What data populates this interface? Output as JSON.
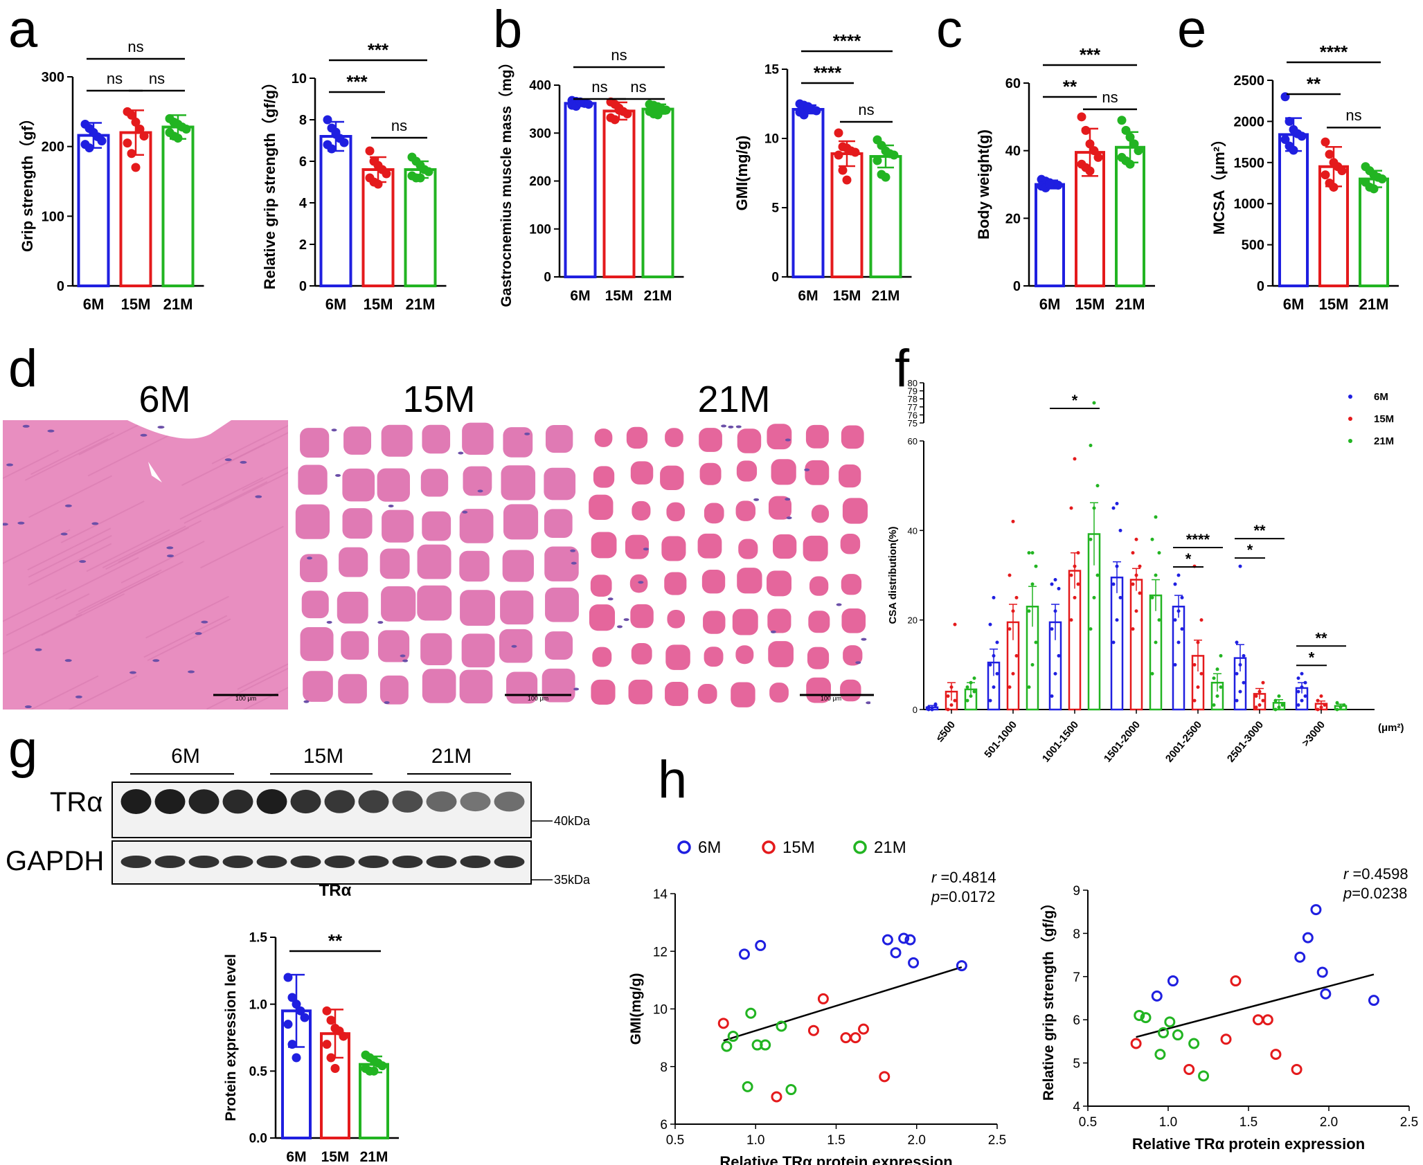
{
  "colors": {
    "6M": "#1f1fe0",
    "15M": "#e41a1c",
    "21M": "#22b422",
    "histo_bg": "#e88ec0",
    "histo_fiber": "#e5669c",
    "histo_gap": "#ffffff"
  },
  "groups": [
    "6M",
    "15M",
    "21M"
  ],
  "panels": {
    "a": "a",
    "b": "b",
    "c": "c",
    "d": "d",
    "e": "e",
    "f": "f",
    "g": "g",
    "h": "h"
  },
  "histology": {
    "labels": [
      "6M",
      "15M",
      "21M"
    ],
    "scalebar": "100 μm"
  },
  "blot": {
    "group_labels": [
      "6M",
      "15M",
      "21M"
    ],
    "rows": [
      "TRα",
      "GAPDH"
    ],
    "markers": [
      "40kDa",
      "35kDa"
    ],
    "bar_title": "TRα"
  },
  "chart_data": [
    {
      "id": "a1",
      "type": "bar",
      "categories": [
        "6M",
        "15M",
        "21M"
      ],
      "values": [
        216,
        220,
        228
      ],
      "sd": [
        18,
        32,
        17
      ],
      "points": [
        [
          232,
          226,
          220,
          214,
          208,
          203,
          198,
          220
        ],
        [
          250,
          245,
          235,
          225,
          215,
          205,
          190,
          170
        ],
        [
          240,
          235,
          232,
          228,
          225,
          220,
          215,
          212
        ]
      ],
      "ylabel": "Grip strength（gf）",
      "ylim": [
        0,
        300
      ],
      "yticks": [
        0,
        100,
        200,
        300
      ],
      "sig": [
        {
          "a": 0,
          "b": 2,
          "label": "ns"
        },
        {
          "a": 0,
          "b": 1,
          "label": "ns"
        },
        {
          "a": 1,
          "b": 2,
          "label": "ns"
        }
      ]
    },
    {
      "id": "a2",
      "type": "bar",
      "categories": [
        "6M",
        "15M",
        "21M"
      ],
      "values": [
        7.2,
        5.6,
        5.6
      ],
      "sd": [
        0.7,
        0.6,
        0.4
      ],
      "points": [
        [
          8.0,
          7.6,
          7.3,
          7.1,
          6.9,
          6.8,
          6.6,
          7.4
        ],
        [
          6.5,
          6.0,
          5.8,
          5.6,
          5.4,
          5.2,
          5.0,
          4.9
        ],
        [
          6.2,
          6.0,
          5.8,
          5.6,
          5.5,
          5.3,
          5.2,
          5.2
        ]
      ],
      "ylabel": "Relative grip strength（gf/g）",
      "ylim": [
        0,
        10
      ],
      "yticks": [
        0,
        2,
        4,
        6,
        8,
        10
      ],
      "sig": [
        {
          "a": 0,
          "b": 2,
          "label": "***"
        },
        {
          "a": 0,
          "b": 1,
          "label": "***"
        },
        {
          "a": 1,
          "b": 2,
          "label": "ns"
        }
      ]
    },
    {
      "id": "b1",
      "type": "bar",
      "categories": [
        "6M",
        "15M",
        "21M"
      ],
      "values": [
        362,
        346,
        350
      ],
      "sd": [
        6,
        18,
        10
      ],
      "points": [
        [
          368,
          366,
          364,
          362,
          360,
          358,
          356,
          365
        ],
        [
          365,
          360,
          352,
          345,
          340,
          332,
          328,
          348
        ],
        [
          360,
          358,
          355,
          350,
          348,
          345,
          340,
          338
        ]
      ],
      "ylabel": "Gastrocnemius muscle mass（mg）",
      "ylim": [
        0,
        400
      ],
      "yticks": [
        0,
        100,
        200,
        300,
        400
      ],
      "sig": [
        {
          "a": 0,
          "b": 2,
          "label": "ns"
        },
        {
          "a": 0,
          "b": 1,
          "label": "ns"
        },
        {
          "a": 1,
          "b": 2,
          "label": "ns"
        }
      ]
    },
    {
      "id": "b2",
      "type": "bar",
      "categories": [
        "6M",
        "15M",
        "21M"
      ],
      "values": [
        12.1,
        8.9,
        8.7
      ],
      "sd": [
        0.3,
        0.9,
        0.8
      ],
      "points": [
        [
          12.5,
          12.4,
          12.3,
          12.1,
          12.0,
          11.9,
          11.7,
          12.2
        ],
        [
          10.4,
          9.4,
          9.3,
          9.1,
          9.0,
          8.8,
          7.7,
          7.0
        ],
        [
          9.9,
          9.5,
          9.1,
          8.9,
          8.8,
          8.4,
          7.4,
          7.2
        ]
      ],
      "ylabel": "GMI(mg/g)",
      "ylim": [
        0,
        15
      ],
      "yticks": [
        0,
        5,
        10,
        15
      ],
      "sig": [
        {
          "a": 0,
          "b": 2,
          "label": "****"
        },
        {
          "a": 0,
          "b": 1,
          "label": "****"
        },
        {
          "a": 1,
          "b": 2,
          "label": "ns"
        }
      ]
    },
    {
      "id": "c",
      "type": "bar",
      "categories": [
        "6M",
        "15M",
        "21M"
      ],
      "values": [
        30,
        39.5,
        41
      ],
      "sd": [
        1.2,
        7,
        4.5
      ],
      "points": [
        [
          31.5,
          31,
          30.5,
          30,
          29.8,
          29.5,
          29,
          30.2
        ],
        [
          50,
          46,
          42,
          40,
          38,
          36,
          35,
          34
        ],
        [
          49,
          46,
          44,
          42,
          40,
          38,
          37,
          36
        ]
      ],
      "ylabel": "Body weight(g)",
      "ylim": [
        0,
        60
      ],
      "yticks": [
        0,
        20,
        40,
        60
      ],
      "sig": [
        {
          "a": 0,
          "b": 2,
          "label": "***"
        },
        {
          "a": 0,
          "b": 1,
          "label": "**"
        },
        {
          "a": 1,
          "b": 2,
          "label": "ns"
        }
      ]
    },
    {
      "id": "e",
      "type": "bar",
      "categories": [
        "6M",
        "15M",
        "21M"
      ],
      "values": [
        1840,
        1450,
        1300
      ],
      "sd": [
        200,
        240,
        100
      ],
      "points": [
        [
          2300,
          2000,
          1900,
          1850,
          1820,
          1780,
          1700,
          1650
        ],
        [
          1750,
          1600,
          1500,
          1450,
          1400,
          1350,
          1250,
          1200
        ],
        [
          1450,
          1400,
          1350,
          1320,
          1300,
          1260,
          1200,
          1180
        ]
      ],
      "ylabel": "MCSA（μm²）",
      "ylim": [
        0,
        2500
      ],
      "yticks": [
        0,
        500,
        1000,
        1500,
        2000,
        2500
      ],
      "sig": [
        {
          "a": 0,
          "b": 2,
          "label": "****"
        },
        {
          "a": 0,
          "b": 1,
          "label": "**"
        },
        {
          "a": 1,
          "b": 2,
          "label": "ns"
        }
      ]
    },
    {
      "id": "f",
      "type": "bar",
      "categories": [
        "≤500",
        "501-1000",
        "1001-1500",
        "1501-2000",
        "2001-2500",
        "2501-3000",
        ">3000"
      ],
      "series": [
        {
          "name": "6M",
          "values": [
            0.5,
            10.5,
            19.5,
            29.5,
            23,
            11.5,
            4.8
          ],
          "sem": [
            0.4,
            3,
            4,
            3.5,
            2.5,
            3,
            1.2
          ],
          "points": [
            [
              0,
              0,
              1,
              0.5,
              0,
              1.2,
              0.5
            ],
            [
              2,
              5,
              8,
              10,
              12,
              15,
              19,
              25
            ],
            [
              3,
              8,
              12,
              18,
              22,
              27,
              28,
              29
            ],
            [
              15,
              20,
              25,
              28,
              32,
              40,
              45,
              46
            ],
            [
              10,
              15,
              18,
              20,
              22,
              25,
              28,
              30
            ],
            [
              2,
              4,
              6,
              8,
              10,
              12,
              15,
              32
            ],
            [
              1,
              2,
              3,
              4,
              5,
              6,
              7,
              8
            ]
          ]
        },
        {
          "name": "15M",
          "values": [
            4,
            19.5,
            31,
            29,
            12,
            3.5,
            1.3
          ],
          "sem": [
            2,
            4,
            4,
            2.5,
            3.5,
            1.2,
            0.6
          ],
          "points": [
            [
              0,
              1,
              2,
              3,
              5,
              19
            ],
            [
              5,
              8,
              12,
              18,
              22,
              25,
              30,
              42
            ],
            [
              20,
              25,
              28,
              30,
              32,
              35,
              45,
              56
            ],
            [
              18,
              22,
              26,
              28,
              30,
              32,
              35,
              38
            ],
            [
              2,
              5,
              8,
              10,
              15,
              20,
              32
            ],
            [
              0.5,
              1,
              2,
              3,
              4,
              6
            ],
            [
              0,
              0.5,
              1,
              2,
              3
            ]
          ]
        },
        {
          "name": "21M",
          "values": [
            4.5,
            23,
            39.2,
            25.5,
            6,
            1.5,
            0.8
          ],
          "sem": [
            1.5,
            4.5,
            7,
            3.5,
            2,
            0.7,
            0.4
          ],
          "points": [
            [
              2,
              3,
              4,
              5,
              6,
              7
            ],
            [
              5,
              10,
              15,
              22,
              28,
              32,
              35,
              35
            ],
            [
              18,
              25,
              30,
              38,
              45,
              50,
              59,
              77.5
            ],
            [
              8,
              15,
              20,
              25,
              30,
              35,
              38,
              43
            ],
            [
              1,
              3,
              5,
              7,
              9,
              12
            ],
            [
              0,
              0.5,
              1,
              2,
              3
            ],
            [
              0,
              0.5,
              1,
              1.5
            ]
          ]
        }
      ],
      "ylabel": "CSA distribution(%)",
      "unit": "(μm²)",
      "ylim_lower": [
        0,
        60
      ],
      "yticks_lower": [
        0,
        20,
        40,
        60
      ],
      "ylim_upper": [
        75,
        80
      ],
      "yticks_upper": [
        75,
        76,
        77,
        78,
        79,
        80
      ],
      "sig": [
        {
          "cat": 2,
          "a": 0,
          "b": 2,
          "label": "*"
        },
        {
          "cat": 4,
          "a": 0,
          "b": 2,
          "label": "****"
        },
        {
          "cat": 4,
          "a": 0,
          "b": 1,
          "label": "*"
        },
        {
          "cat": 5,
          "a": 0,
          "b": 2,
          "label": "**"
        },
        {
          "cat": 5,
          "a": 0,
          "b": 1,
          "label": "*"
        },
        {
          "cat": 6,
          "a": 0,
          "b": 2,
          "label": "**"
        },
        {
          "cat": 6,
          "a": 0,
          "b": 1,
          "label": "*"
        }
      ],
      "legend": "top-right"
    },
    {
      "id": "g",
      "type": "bar",
      "title": "TRα",
      "categories": [
        "6M",
        "15M",
        "21M"
      ],
      "values": [
        0.95,
        0.78,
        0.55
      ],
      "sd": [
        0.27,
        0.18,
        0.06
      ],
      "points": [
        [
          1.2,
          1.05,
          1.0,
          0.95,
          0.9,
          0.85,
          0.7,
          0.6
        ],
        [
          0.95,
          0.88,
          0.82,
          0.8,
          0.76,
          0.7,
          0.6,
          0.52
        ],
        [
          0.62,
          0.6,
          0.58,
          0.56,
          0.54,
          0.52,
          0.5,
          0.5
        ]
      ],
      "ylabel": "Protein expression level",
      "ylim": [
        0,
        1.5
      ],
      "yticks": [
        0.0,
        0.5,
        1.0,
        1.5
      ],
      "sig": [
        {
          "a": 0,
          "b": 2,
          "label": "**"
        }
      ]
    },
    {
      "id": "h1",
      "type": "scatter",
      "xlabel": "Relative TRα protein expression",
      "ylabel": "GMI(mg/g)",
      "xlim": [
        0.5,
        2.5
      ],
      "xticks": [
        0.5,
        1.0,
        1.5,
        2.0,
        2.5
      ],
      "ylim": [
        6,
        14
      ],
      "yticks": [
        6,
        8,
        10,
        12,
        14
      ],
      "series": [
        {
          "name": "6M",
          "points": [
            [
              0.93,
              11.9
            ],
            [
              1.03,
              12.2
            ],
            [
              1.82,
              12.4
            ],
            [
              1.87,
              11.95
            ],
            [
              1.92,
              12.45
            ],
            [
              1.96,
              12.4
            ],
            [
              1.98,
              11.6
            ],
            [
              2.28,
              11.5
            ]
          ]
        },
        {
          "name": "15M",
          "points": [
            [
              0.8,
              9.5
            ],
            [
              1.13,
              6.95
            ],
            [
              1.36,
              9.25
            ],
            [
              1.42,
              10.35
            ],
            [
              1.56,
              9.0
            ],
            [
              1.62,
              9.0
            ],
            [
              1.67,
              9.3
            ],
            [
              1.8,
              7.65
            ]
          ]
        },
        {
          "name": "21M",
          "points": [
            [
              0.82,
              8.7
            ],
            [
              0.86,
              9.05
            ],
            [
              0.95,
              7.3
            ],
            [
              0.97,
              9.85
            ],
            [
              1.01,
              8.75
            ],
            [
              1.06,
              8.75
            ],
            [
              1.16,
              9.4
            ],
            [
              1.22,
              7.2
            ]
          ]
        }
      ],
      "fit": [
        [
          0.8,
          8.9
        ],
        [
          2.28,
          11.45
        ]
      ],
      "r": "=0.4814",
      "p": "=0.0172"
    },
    {
      "id": "h2",
      "type": "scatter",
      "xlabel": "Relative TRα protein expression",
      "ylabel": "Relative grip strength（gf/g）",
      "xlim": [
        0.5,
        2.5
      ],
      "xticks": [
        0.5,
        1.0,
        1.5,
        2.0,
        2.5
      ],
      "ylim": [
        4,
        9
      ],
      "yticks": [
        4,
        5,
        6,
        7,
        8,
        9
      ],
      "series": [
        {
          "name": "6M",
          "points": [
            [
              0.93,
              6.55
            ],
            [
              1.03,
              6.9
            ],
            [
              1.82,
              7.45
            ],
            [
              1.87,
              7.9
            ],
            [
              1.92,
              8.55
            ],
            [
              1.96,
              7.1
            ],
            [
              1.98,
              6.6
            ],
            [
              2.28,
              6.45
            ]
          ]
        },
        {
          "name": "15M",
          "points": [
            [
              0.8,
              5.45
            ],
            [
              1.13,
              4.85
            ],
            [
              1.36,
              5.55
            ],
            [
              1.42,
              6.9
            ],
            [
              1.56,
              6.0
            ],
            [
              1.62,
              6.0
            ],
            [
              1.67,
              5.2
            ],
            [
              1.8,
              4.85
            ]
          ]
        },
        {
          "name": "21M",
          "points": [
            [
              0.82,
              6.1
            ],
            [
              0.86,
              6.05
            ],
            [
              0.95,
              5.2
            ],
            [
              0.97,
              5.7
            ],
            [
              1.01,
              5.95
            ],
            [
              1.06,
              5.65
            ],
            [
              1.16,
              5.45
            ],
            [
              1.22,
              4.7
            ]
          ]
        }
      ],
      "fit": [
        [
          0.8,
          5.6
        ],
        [
          2.28,
          7.05
        ]
      ],
      "r": "=0.4598",
      "p": "=0.0238"
    }
  ]
}
